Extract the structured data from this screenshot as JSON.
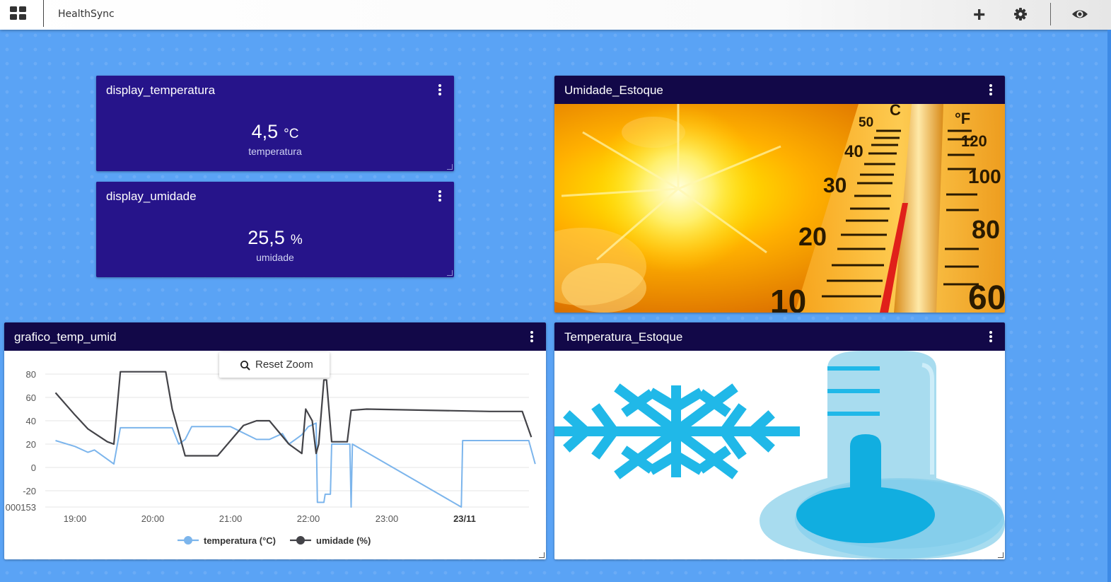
{
  "app": {
    "title": "HealthSync"
  },
  "toolbar": {
    "menu_icon": "grid-icon",
    "add_icon": "plus-icon",
    "settings_icon": "gear-icon",
    "view_icon": "eye-icon"
  },
  "widgets": {
    "display_temperatura": {
      "title": "display_temperatura",
      "value": "4,5",
      "unit": "°C",
      "caption": "temperatura"
    },
    "display_umidade": {
      "title": "display_umidade",
      "value": "25,5",
      "unit": "%",
      "caption": "umidade"
    },
    "umidade_estoque": {
      "title": "Umidade_Estoque",
      "image": "hot-thermometer-sun-image"
    },
    "temperatura_estoque": {
      "title": "Temperatura_Estoque",
      "image": "snowflake-cold-thermometer-image"
    },
    "grafico": {
      "title": "grafico_temp_umid",
      "reset_zoom_label": "Reset Zoom"
    }
  },
  "colors": {
    "widget_header": "#120848",
    "display_bg": "#26148a",
    "background": "#5aa3f5",
    "series_temp": "#7cb5ec",
    "series_umid": "#434348"
  },
  "chart_data": {
    "type": "line",
    "title": "",
    "xlabel": "",
    "ylabel": "",
    "x_ticks": [
      "19:00",
      "20:00",
      "21:00",
      "22:00",
      "23:00",
      "23/11"
    ],
    "y_ticks": [
      "80",
      "60",
      "40",
      "20",
      "0",
      "-20",
      "000153"
    ],
    "ylim": [
      -34,
      82
    ],
    "grid": true,
    "legend_position": "bottom-center",
    "series": [
      {
        "name": "temperatura (°C)",
        "color": "#7cb5ec",
        "points": [
          [
            "18:45",
            23
          ],
          [
            "19:00",
            18
          ],
          [
            "19:10",
            13
          ],
          [
            "19:15",
            15
          ],
          [
            "19:25",
            7
          ],
          [
            "19:30",
            3
          ],
          [
            "19:35",
            34
          ],
          [
            "20:15",
            34
          ],
          [
            "20:20",
            20
          ],
          [
            "20:25",
            24
          ],
          [
            "20:30",
            35
          ],
          [
            "21:00",
            35
          ],
          [
            "21:20",
            24
          ],
          [
            "21:30",
            24
          ],
          [
            "21:40",
            29
          ],
          [
            "21:45",
            20
          ],
          [
            "21:50",
            24
          ],
          [
            "21:55",
            28
          ],
          [
            "22:00",
            35
          ],
          [
            "22:06",
            38
          ],
          [
            "22:07",
            -30
          ],
          [
            "22:12",
            -30
          ],
          [
            "22:13",
            -23
          ],
          [
            "22:17",
            -23
          ],
          [
            "22:18",
            20
          ],
          [
            "22:32",
            20
          ],
          [
            "22:33",
            -34
          ],
          [
            "22:34",
            20
          ],
          [
            "23:58",
            -34
          ],
          [
            "23:59",
            23
          ],
          [
            "00:50",
            23
          ],
          [
            "00:55",
            3
          ]
        ]
      },
      {
        "name": "umidade (%)",
        "color": "#434348",
        "points": [
          [
            "18:45",
            64
          ],
          [
            "19:00",
            45
          ],
          [
            "19:10",
            33
          ],
          [
            "19:25",
            22
          ],
          [
            "19:30",
            20
          ],
          [
            "19:35",
            82
          ],
          [
            "20:10",
            82
          ],
          [
            "20:15",
            50
          ],
          [
            "20:20",
            30
          ],
          [
            "20:25",
            10
          ],
          [
            "20:50",
            10
          ],
          [
            "21:10",
            36
          ],
          [
            "21:20",
            40
          ],
          [
            "21:30",
            40
          ],
          [
            "21:45",
            20
          ],
          [
            "21:55",
            12
          ],
          [
            "21:58",
            50
          ],
          [
            "22:03",
            40
          ],
          [
            "22:06",
            12
          ],
          [
            "22:08",
            20
          ],
          [
            "22:12",
            75
          ],
          [
            "22:14",
            75
          ],
          [
            "22:18",
            22
          ],
          [
            "22:30",
            22
          ],
          [
            "22:33",
            49
          ],
          [
            "22:45",
            50
          ],
          [
            "00:20",
            48
          ],
          [
            "00:45",
            48
          ],
          [
            "00:52",
            26
          ]
        ]
      }
    ]
  }
}
